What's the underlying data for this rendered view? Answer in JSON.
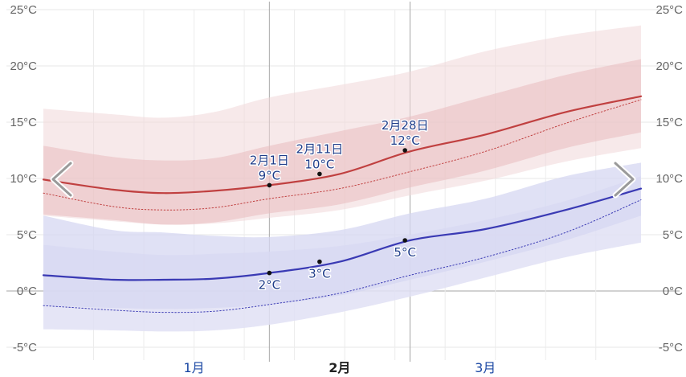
{
  "chart_data": {
    "type": "area",
    "title": "",
    "xlabel": "",
    "ylabel": "",
    "y_unit": "°C",
    "ylim": [
      -5,
      25
    ],
    "y_ticks": [
      "25°C",
      "20°C",
      "15°C",
      "10°C",
      "5°C",
      "0°C",
      "-5°C"
    ],
    "x_range_days": [
      -14,
      105
    ],
    "months": [
      {
        "label": "1月",
        "day": 16,
        "highlight": false,
        "color": "#1a47a3"
      },
      {
        "label": "2月",
        "day": 45,
        "highlight": true,
        "color": "#222222"
      },
      {
        "label": "3月",
        "day": 74,
        "highlight": false,
        "color": "#1a47a3"
      }
    ],
    "major_gridlines_days": [
      31,
      59
    ],
    "grid": true,
    "x": [
      -14,
      0,
      10,
      20,
      31,
      45,
      59,
      74,
      90,
      105
    ],
    "series": [
      {
        "role": "high_p90",
        "color": "#f1d7d8",
        "values": [
          16.2,
          15.7,
          15.4,
          15.9,
          17.2,
          18.3,
          19.5,
          21.3,
          22.7,
          23.6
        ]
      },
      {
        "role": "high_p75",
        "color": "#e9bcbe",
        "values": [
          12.9,
          11.9,
          11.6,
          11.8,
          12.9,
          14.2,
          15.5,
          17.3,
          19.2,
          20.6
        ]
      },
      {
        "role": "high_mean",
        "color": "#c04040",
        "values": [
          9.9,
          9.0,
          8.7,
          8.9,
          9.4,
          10.4,
          12.4,
          13.9,
          15.9,
          17.3
        ]
      },
      {
        "role": "high_norm",
        "color": "#c04040",
        "values": [
          8.7,
          7.5,
          7.2,
          7.4,
          8.2,
          9.1,
          10.6,
          12.4,
          14.9,
          17.0
        ]
      },
      {
        "role": "high_p25",
        "color": "#e9bcbe",
        "values": [
          6.8,
          6.3,
          5.9,
          6.1,
          6.9,
          7.7,
          9.2,
          10.7,
          12.7,
          14.1
        ]
      },
      {
        "role": "low_p75",
        "color": "#cfc1db",
        "values": [
          6.7,
          5.4,
          5.2,
          4.9,
          4.8,
          5.4,
          6.9,
          8.2,
          10.2,
          11.4
        ]
      },
      {
        "role": "high_p10",
        "color": "#f1d7d8",
        "values": [
          6.7,
          6.2,
          5.9,
          6.0,
          6.5,
          7.2,
          8.5,
          9.8,
          11.5,
          12.7
        ]
      },
      {
        "role": "low_p90",
        "color": "#d6d7f1",
        "values": [
          4.1,
          3.5,
          3.2,
          3.3,
          3.5,
          4.0,
          5.0,
          6.3,
          8.0,
          10.2
        ]
      },
      {
        "role": "low_mean",
        "color": "#3a3ab4",
        "values": [
          1.4,
          1.0,
          1.0,
          1.1,
          1.6,
          2.6,
          4.5,
          5.5,
          7.2,
          9.1
        ]
      },
      {
        "role": "low_norm",
        "color": "#3a3ab4",
        "values": [
          -1.3,
          -1.7,
          -1.9,
          -1.8,
          -1.2,
          -0.2,
          1.4,
          3.0,
          5.2,
          8.1
        ]
      },
      {
        "role": "low_p25",
        "color": "#c6c8ea",
        "values": [
          -1.3,
          -1.5,
          -1.6,
          -1.5,
          -1.2,
          -0.4,
          1.0,
          2.6,
          4.5,
          6.7
        ]
      },
      {
        "role": "low_p10",
        "color": "#e0e1f5",
        "values": [
          -3.4,
          -3.5,
          -3.6,
          -3.5,
          -3.0,
          -1.9,
          -0.5,
          1.2,
          3.0,
          4.3
        ]
      }
    ],
    "annotations": [
      {
        "series": "high",
        "day": 31,
        "value": 9.4,
        "date": "2月1日",
        "temp": "9°C"
      },
      {
        "series": "high",
        "day": 41,
        "value": 10.4,
        "date": "2月11日",
        "temp": "10°C"
      },
      {
        "series": "high",
        "day": 58,
        "value": 12.5,
        "date": "2月28日",
        "temp": "12°C"
      },
      {
        "series": "low",
        "day": 31,
        "value": 1.6,
        "temp": "2°C"
      },
      {
        "series": "low",
        "day": 41,
        "value": 2.6,
        "temp": "3°C"
      },
      {
        "series": "low",
        "day": 58,
        "value": 4.5,
        "temp": "5°C"
      }
    ]
  },
  "nav": {
    "prev_icon": "chevron-left-icon",
    "next_icon": "chevron-right-icon"
  }
}
